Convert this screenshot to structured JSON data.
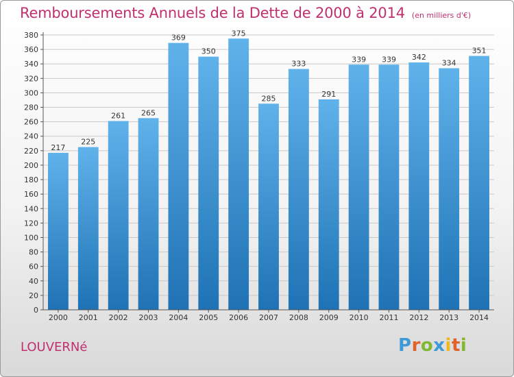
{
  "header": {
    "title": "Remboursements Annuels de la Dette de 2000 à 2014",
    "subtitle": "(en milliers d'€)"
  },
  "footer": {
    "place": "LOUVERNé",
    "logo": {
      "letters": [
        "P",
        "r",
        "o",
        "x",
        "i",
        "t",
        "i"
      ],
      "colors": [
        "#3d9ad6",
        "#e0622a",
        "#80b832",
        "#3d9ad6",
        "#f0b820",
        "#e0622a",
        "#80b832"
      ]
    }
  },
  "colors": {
    "bar_light": "#5fb2ea",
    "bar_dark": "#1f72b4",
    "title": "#c0306e",
    "grid": "#c8c8c8",
    "label": "#333333"
  },
  "chart_data": {
    "type": "bar",
    "title": "Remboursements Annuels de la Dette de 2000 à 2014",
    "subtitle": "(en milliers d'€)",
    "categories": [
      "2000",
      "2001",
      "2002",
      "2003",
      "2004",
      "2005",
      "2006",
      "2007",
      "2008",
      "2009",
      "2010",
      "2011",
      "2012",
      "2013",
      "2014"
    ],
    "values": [
      217,
      225,
      261,
      265,
      369,
      350,
      375,
      285,
      333,
      291,
      339,
      339,
      342,
      334,
      351
    ],
    "ylim": [
      0,
      380
    ],
    "ytick_step": 20,
    "grid": true,
    "data_labels": true
  }
}
